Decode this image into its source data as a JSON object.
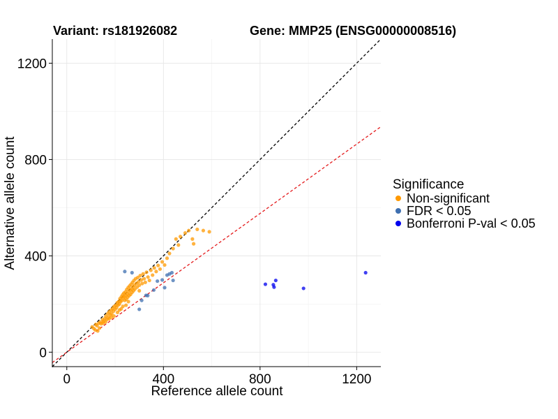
{
  "chart_data": {
    "type": "scatter",
    "title_left": "Variant: rs181926082",
    "title_right": "Gene: MMP25 (ENSG00000008516)",
    "xlabel": "Reference allele count",
    "ylabel": "Alternative allele count",
    "xlim": [
      -60,
      1300
    ],
    "ylim": [
      -60,
      1300
    ],
    "xticks": [
      0,
      400,
      800,
      1200
    ],
    "yticks": [
      0,
      400,
      800,
      1200
    ],
    "grid": true,
    "reference_lines": [
      {
        "name": "identity line",
        "slope": 1.0,
        "intercept": 0,
        "color": "#000000",
        "style": "dashed"
      },
      {
        "name": "fitted ratio line",
        "slope": 0.72,
        "intercept": 0,
        "color": "#e41a1c",
        "style": "dashed"
      }
    ],
    "legend": {
      "title": "Significance",
      "placement": "right",
      "entries": [
        {
          "label": "Non-significant",
          "color": "#ff9900"
        },
        {
          "label": "FDR < 0.05",
          "color": "#3e6fb0"
        },
        {
          "label": "Bonferroni P-val < 0.05",
          "color": "#0000ee"
        }
      ]
    },
    "series": [
      {
        "name": "Non-significant",
        "color": "#ff9900",
        "points": [
          [
            105,
            105
          ],
          [
            112,
            98
          ],
          [
            120,
            115
          ],
          [
            125,
            110
          ],
          [
            132,
            120
          ],
          [
            138,
            125
          ],
          [
            142,
            118
          ],
          [
            148,
            135
          ],
          [
            152,
            128
          ],
          [
            158,
            140
          ],
          [
            162,
            150
          ],
          [
            165,
            135
          ],
          [
            170,
            160
          ],
          [
            172,
            145
          ],
          [
            176,
            168
          ],
          [
            180,
            155
          ],
          [
            184,
            175
          ],
          [
            186,
            160
          ],
          [
            190,
            182
          ],
          [
            193,
            170
          ],
          [
            196,
            190
          ],
          [
            200,
            178
          ],
          [
            203,
            195
          ],
          [
            206,
            185
          ],
          [
            209,
            205
          ],
          [
            212,
            195
          ],
          [
            215,
            210
          ],
          [
            218,
            200
          ],
          [
            220,
            222
          ],
          [
            223,
            210
          ],
          [
            226,
            230
          ],
          [
            228,
            215
          ],
          [
            231,
            238
          ],
          [
            233,
            225
          ],
          [
            236,
            245
          ],
          [
            238,
            230
          ],
          [
            240,
            215
          ],
          [
            242,
            250
          ],
          [
            244,
            235
          ],
          [
            246,
            220
          ],
          [
            248,
            260
          ],
          [
            250,
            242
          ],
          [
            252,
            228
          ],
          [
            254,
            268
          ],
          [
            256,
            250
          ],
          [
            258,
            235
          ],
          [
            260,
            275
          ],
          [
            262,
            258
          ],
          [
            264,
            240
          ],
          [
            266,
            282
          ],
          [
            268,
            262
          ],
          [
            270,
            248
          ],
          [
            272,
            290
          ],
          [
            274,
            270
          ],
          [
            276,
            255
          ],
          [
            278,
            298
          ],
          [
            280,
            278
          ],
          [
            282,
            262
          ],
          [
            285,
            305
          ],
          [
            288,
            285
          ],
          [
            291,
            270
          ],
          [
            294,
            310
          ],
          [
            297,
            292
          ],
          [
            300,
            278
          ],
          [
            304,
            318
          ],
          [
            308,
            300
          ],
          [
            312,
            285
          ],
          [
            316,
            325
          ],
          [
            320,
            305
          ],
          [
            325,
            290
          ],
          [
            330,
            332
          ],
          [
            336,
            312
          ],
          [
            342,
            298
          ],
          [
            348,
            340
          ],
          [
            355,
            320
          ],
          [
            362,
            350
          ],
          [
            370,
            335
          ],
          [
            378,
            360
          ],
          [
            386,
            345
          ],
          [
            395,
            375
          ],
          [
            405,
            362
          ],
          [
            415,
            390
          ],
          [
            425,
            410
          ],
          [
            440,
            430
          ],
          [
            452,
            470
          ],
          [
            462,
            445
          ],
          [
            470,
            480
          ],
          [
            490,
            495
          ],
          [
            505,
            505
          ],
          [
            520,
            470
          ],
          [
            525,
            450
          ],
          [
            540,
            510
          ],
          [
            565,
            505
          ],
          [
            590,
            500
          ],
          [
            150,
            120
          ],
          [
            160,
            125
          ],
          [
            175,
            138
          ],
          [
            195,
            150
          ],
          [
            210,
            165
          ],
          [
            225,
            180
          ],
          [
            245,
            195
          ],
          [
            185,
            145
          ],
          [
            135,
            100
          ],
          [
            118,
            92
          ],
          [
            128,
            88
          ],
          [
            255,
            210
          ],
          [
            300,
            255
          ],
          [
            232,
            190
          ],
          [
            218,
            175
          ]
        ]
      },
      {
        "name": "FDR < 0.05",
        "color": "#3e6fb0",
        "points": [
          [
            240,
            335
          ],
          [
            270,
            330
          ],
          [
            300,
            178
          ],
          [
            310,
            215
          ],
          [
            335,
            235
          ],
          [
            360,
            258
          ],
          [
            375,
            295
          ],
          [
            395,
            300
          ],
          [
            405,
            268
          ],
          [
            415,
            320
          ],
          [
            425,
            325
          ],
          [
            435,
            330
          ],
          [
            440,
            298
          ],
          [
            328,
            236
          ]
        ]
      },
      {
        "name": "Bonferroni P-val < 0.05",
        "color": "#0000ee",
        "points": [
          [
            822,
            282
          ],
          [
            855,
            280
          ],
          [
            858,
            270
          ],
          [
            865,
            298
          ],
          [
            980,
            265
          ],
          [
            1237,
            330
          ]
        ]
      }
    ]
  }
}
